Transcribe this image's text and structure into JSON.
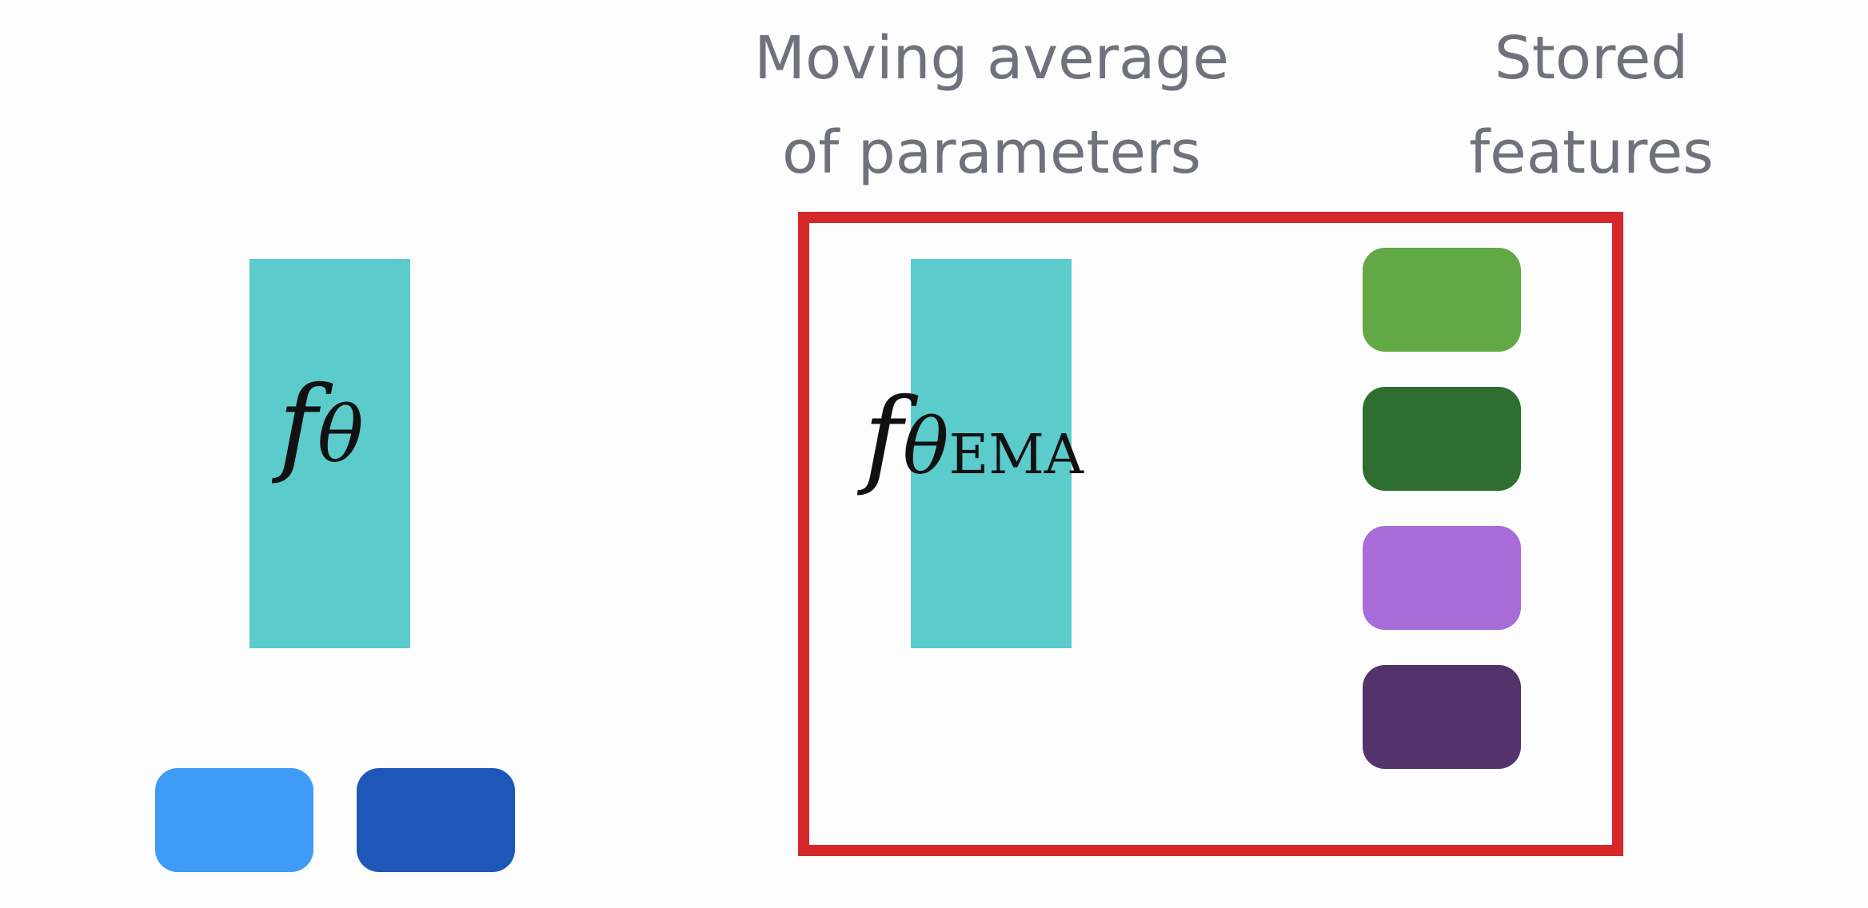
{
  "headings": {
    "ema": {
      "line1": "Moving average",
      "line2": "of parameters"
    },
    "stored": {
      "line1": "Stored",
      "line2": "features"
    }
  },
  "networks": {
    "student": {
      "symbol": "f",
      "subscript": "θ",
      "color": "#5ccbcc"
    },
    "ema": {
      "symbol": "f",
      "subscript": "θ",
      "sub_subscript": "EMA",
      "color": "#5ccbcc"
    }
  },
  "frame": {
    "color": "#d4282a"
  },
  "stored_features": [
    {
      "color": "#62a845"
    },
    {
      "color": "#2e6e30"
    },
    {
      "color": "#a86cd8"
    },
    {
      "color": "#54336c"
    }
  ],
  "inputs": [
    {
      "color": "#3f9bf7"
    },
    {
      "color": "#1e57b8"
    }
  ]
}
